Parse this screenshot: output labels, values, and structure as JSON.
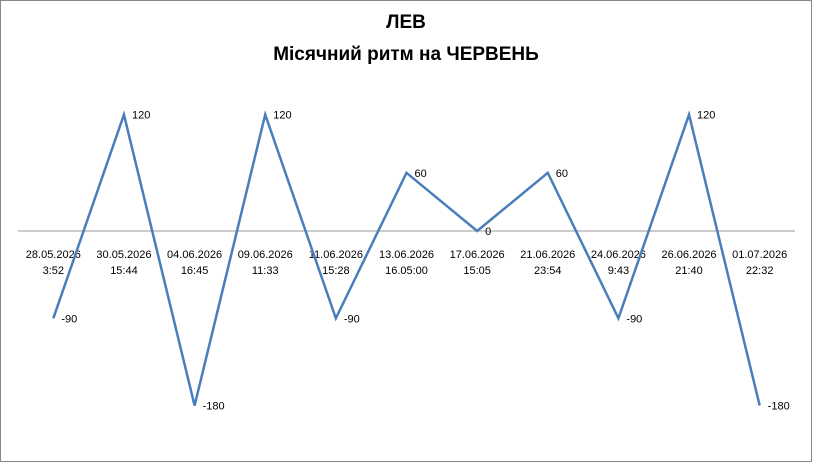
{
  "chart_data": {
    "type": "line",
    "title": [
      "ЛЕВ",
      "Місячний ритм на ЧЕРВЕНЬ"
    ],
    "categories": [
      [
        "28.05.2026",
        "3:52"
      ],
      [
        "30.05.2026",
        "15:44"
      ],
      [
        "04.06.2026",
        "16:45"
      ],
      [
        "09.06.2026",
        "11:33"
      ],
      [
        "11.06.2026",
        "15:28"
      ],
      [
        "13.06.2026",
        "16.05:00"
      ],
      [
        "17.06.2026",
        "15:05"
      ],
      [
        "21.06.2026",
        "23:54"
      ],
      [
        "24.06.2026",
        "9:43"
      ],
      [
        "26.06.2026",
        "21:40"
      ],
      [
        "01.07.2026",
        "22:32"
      ]
    ],
    "values": [
      -90,
      120,
      -180,
      120,
      -90,
      60,
      0,
      60,
      -90,
      120,
      -180
    ],
    "color": "#4a7ebb",
    "ylim": [
      -200,
      150
    ]
  }
}
